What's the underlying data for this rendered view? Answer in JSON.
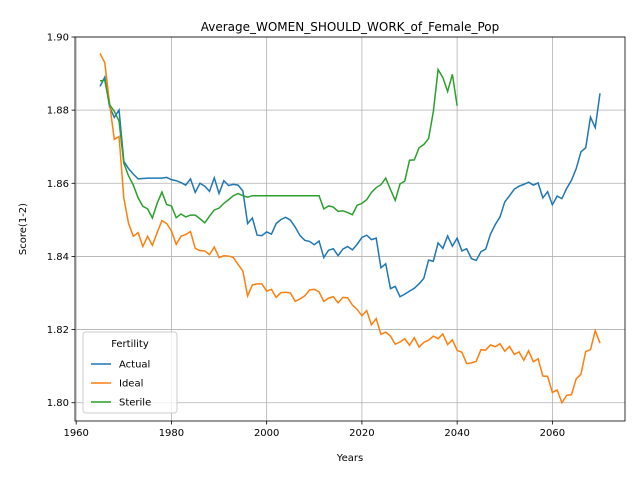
{
  "chart_data": {
    "type": "line",
    "title": "Average_WOMEN_SHOULD_WORK_of_Female_Pop",
    "xlabel": "Years",
    "ylabel": "Score(1-2)",
    "x": [
      1965,
      1966,
      1967,
      1968,
      1969,
      1970,
      1971,
      1972,
      1973,
      1974,
      1975,
      1976,
      1977,
      1978,
      1979,
      1980,
      1981,
      1982,
      1983,
      1984,
      1985,
      1986,
      1987,
      1988,
      1989,
      1990,
      1991,
      1992,
      1993,
      1994,
      1995,
      1996,
      1997,
      1998,
      1999,
      2000,
      2001,
      2002,
      2003,
      2004,
      2005,
      2006,
      2007,
      2008,
      2009,
      2010,
      2011,
      2012,
      2013,
      2014,
      2015,
      2016,
      2017,
      2018,
      2019,
      2020,
      2021,
      2022,
      2023,
      2024,
      2025,
      2026,
      2027,
      2028,
      2029,
      2030,
      2031,
      2032,
      2033,
      2034,
      2035,
      2036,
      2037,
      2038,
      2039,
      2040,
      2041,
      2042,
      2043,
      2044,
      2045,
      2046,
      2047,
      2048,
      2049,
      2050,
      2051,
      2052,
      2053,
      2054,
      2055,
      2056,
      2057,
      2058,
      2059,
      2060,
      2061,
      2062,
      2063,
      2064,
      2065,
      2066,
      2067,
      2068,
      2069,
      2070
    ],
    "series": [
      {
        "name": "Actual",
        "color": "#1f77b4",
        "values": [
          1.8865,
          1.889,
          1.881,
          1.878,
          1.88,
          1.866,
          1.864,
          1.8625,
          1.8612,
          1.8613,
          1.8614,
          1.8614,
          1.8614,
          1.8614,
          1.8616,
          1.861,
          1.8607,
          1.8602,
          1.8595,
          1.8612,
          1.8575,
          1.86,
          1.8592,
          1.8578,
          1.8615,
          1.8572,
          1.8607,
          1.8594,
          1.8597,
          1.8595,
          1.8579,
          1.849,
          1.8505,
          1.8458,
          1.8457,
          1.8467,
          1.8461,
          1.849,
          1.8501,
          1.8507,
          1.8499,
          1.848,
          1.8457,
          1.8444,
          1.8441,
          1.8432,
          1.8442,
          1.8397,
          1.8417,
          1.8421,
          1.8402,
          1.842,
          1.8427,
          1.8418,
          1.8433,
          1.8452,
          1.8458,
          1.8446,
          1.845,
          1.8369,
          1.838,
          1.8312,
          1.8318,
          1.829,
          1.8297,
          1.8305,
          1.8313,
          1.8325,
          1.834,
          1.839,
          1.8387,
          1.8437,
          1.8422,
          1.8456,
          1.8428,
          1.845,
          1.8415,
          1.8421,
          1.8394,
          1.8389,
          1.8413,
          1.842,
          1.8461,
          1.8487,
          1.8508,
          1.8549,
          1.8566,
          1.8584,
          1.8592,
          1.8597,
          1.8603,
          1.8595,
          1.8601,
          1.856,
          1.8577,
          1.8541,
          1.8565,
          1.8558,
          1.8586,
          1.8608,
          1.864,
          1.8686,
          1.8697,
          1.8781,
          1.8752,
          1.8846
        ]
      },
      {
        "name": "Ideal",
        "color": "#ff7f0e",
        "values": [
          1.8955,
          1.893,
          1.882,
          1.872,
          1.8728,
          1.856,
          1.849,
          1.8455,
          1.8465,
          1.8427,
          1.8455,
          1.843,
          1.8465,
          1.8498,
          1.849,
          1.847,
          1.8433,
          1.8455,
          1.846,
          1.8468,
          1.8422,
          1.8416,
          1.8415,
          1.8405,
          1.8426,
          1.8397,
          1.8402,
          1.8401,
          1.8397,
          1.8378,
          1.836,
          1.8292,
          1.8322,
          1.8325,
          1.8325,
          1.8305,
          1.831,
          1.8288,
          1.8301,
          1.8302,
          1.83,
          1.8277,
          1.8284,
          1.8292,
          1.8308,
          1.831,
          1.8303,
          1.8277,
          1.8286,
          1.829,
          1.8273,
          1.8288,
          1.8287,
          1.8267,
          1.8255,
          1.8238,
          1.8252,
          1.8213,
          1.823,
          1.8187,
          1.8193,
          1.8182,
          1.816,
          1.8166,
          1.8175,
          1.8157,
          1.8178,
          1.8152,
          1.8165,
          1.8171,
          1.8182,
          1.8175,
          1.8188,
          1.8159,
          1.8172,
          1.8143,
          1.8138,
          1.8107,
          1.8109,
          1.8113,
          1.8145,
          1.8144,
          1.8158,
          1.8153,
          1.8161,
          1.8141,
          1.8154,
          1.8132,
          1.8139,
          1.8116,
          1.8142,
          1.8112,
          1.812,
          1.8073,
          1.8072,
          1.8028,
          1.8035,
          1.8,
          1.802,
          1.8022,
          1.8065,
          1.8078,
          1.814,
          1.8145,
          1.8197,
          1.8163
        ]
      },
      {
        "name": "Sterile",
        "color": "#2ca02c",
        "values": [
          1.888,
          1.8882,
          1.8815,
          1.8797,
          1.877,
          1.8655,
          1.862,
          1.8595,
          1.856,
          1.8537,
          1.853,
          1.8505,
          1.8545,
          1.8576,
          1.8542,
          1.8538,
          1.8506,
          1.8516,
          1.8508,
          1.8513,
          1.8513,
          1.8503,
          1.8492,
          1.851,
          1.8527,
          1.8532,
          1.8545,
          1.8555,
          1.8566,
          1.8572,
          1.8566,
          1.8562,
          1.8566,
          1.8566,
          1.8566,
          1.8566,
          1.8566,
          1.8566,
          1.8566,
          1.8566,
          1.8566,
          1.8566,
          1.8566,
          1.8566,
          1.8566,
          1.8566,
          1.8566,
          1.853,
          1.8538,
          1.8535,
          1.8523,
          1.8525,
          1.852,
          1.8514,
          1.854,
          1.8545,
          1.8555,
          1.8575,
          1.8588,
          1.8596,
          1.8614,
          1.8583,
          1.8553,
          1.8598,
          1.8606,
          1.8663,
          1.8664,
          1.8697,
          1.8706,
          1.8722,
          1.8796,
          1.8911,
          1.8889,
          1.8851,
          1.8898,
          1.8812,
          null,
          null,
          null,
          null,
          null,
          null,
          null,
          null,
          null,
          null,
          null,
          null,
          null,
          null,
          null,
          null,
          null,
          null,
          null,
          null,
          null,
          null,
          null,
          null,
          null,
          null,
          null,
          null,
          null,
          null
        ]
      }
    ],
    "xlim": [
      1959.75,
      2075.25
    ],
    "ylim": [
      1.795,
      1.9
    ],
    "xticks": [
      1960,
      1980,
      2000,
      2020,
      2040,
      2060
    ],
    "yticks": [
      {
        "value": 1.8,
        "label": "1.80"
      },
      {
        "value": 1.82,
        "label": "1.82"
      },
      {
        "value": 1.84,
        "label": "1.84"
      },
      {
        "value": 1.86,
        "label": "1.86"
      },
      {
        "value": 1.88,
        "label": "1.88"
      },
      {
        "value": 1.9,
        "label": "1.90"
      }
    ],
    "grid": true,
    "legend_title": "Fertility",
    "legend_loc": "lower left"
  }
}
